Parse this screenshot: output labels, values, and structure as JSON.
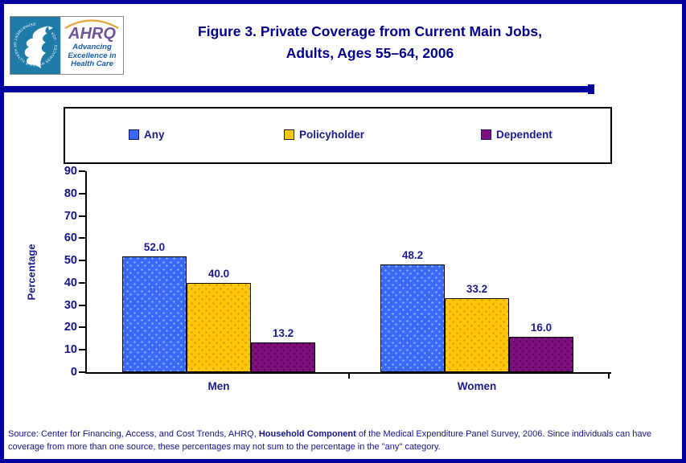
{
  "header": {
    "title_line1": "Figure 3. Private Coverage from Current Main Jobs,",
    "title_line2": "Adults, Ages 55–64, 2006",
    "logo": {
      "seal_text": "DEPARTMENT OF HEALTH & HUMAN SERVICES · USA",
      "ahrq_acronym": "AHRQ",
      "tagline_line1": "Advancing",
      "tagline_line2": "Excellence in",
      "tagline_line3": "Health Care"
    }
  },
  "chart_data": {
    "type": "bar",
    "title": "Figure 3. Private Coverage from Current Main Jobs, Adults, Ages 55–64, 2006",
    "categories": [
      "Men",
      "Women"
    ],
    "series": [
      {
        "name": "Any",
        "color": "#3D66FB",
        "values": [
          52.0,
          48.2
        ]
      },
      {
        "name": "Policyholder",
        "color": "#FFC60A",
        "values": [
          40.0,
          33.2
        ]
      },
      {
        "name": "Dependent",
        "color": "#7F0E7E",
        "values": [
          13.2,
          16.0
        ]
      }
    ],
    "xlabel": "",
    "ylabel": "Percentage",
    "ylim": [
      0,
      90
    ],
    "ytick_step": 10,
    "grid": false,
    "legend_position": "top",
    "value_label_format": "one_decimal"
  },
  "colors": {
    "frame_navy": "#0101A0",
    "text_navy": "#1B1B8F",
    "title_navy": "#00008B",
    "hhs_teal": "#1F7CA8",
    "ahrq_purple": "#6F549B",
    "ahrq_arc_orange": "#E8A23B",
    "tagline_blue": "#1A5DA8"
  },
  "source": {
    "line1_prefix": "Source: Center for Financing, Access, and Cost Trends, AHRQ, ",
    "line1_bold": "Household Component",
    "line1_suffix": " of the Medical Expenditure Panel Survey, 2006. Since individuals can have",
    "line2": "coverage from more than one source, these percentages may not sum to the percentage in the \"any\" category."
  }
}
